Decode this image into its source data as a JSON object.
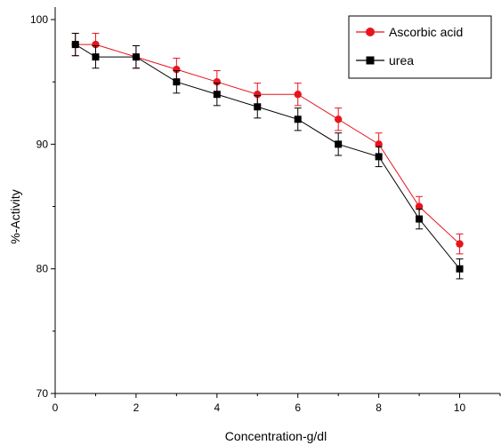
{
  "chart_data": {
    "type": "line",
    "xlabel": "Concentration-g/dl",
    "ylabel": "%-Activity",
    "xlim": [
      0,
      11
    ],
    "ylim": [
      70,
      101
    ],
    "x_ticks": [
      "0",
      "2",
      "4",
      "6",
      "8",
      "10"
    ],
    "y_ticks": [
      "70",
      "80",
      "90",
      "100"
    ],
    "grid": false,
    "legend_position": "top-right",
    "series": [
      {
        "name": "Ascorbic acid",
        "color": "#e8141c",
        "marker": "circle",
        "x": [
          0.5,
          1,
          2,
          3,
          4,
          5,
          6,
          7,
          8,
          9,
          10
        ],
        "y": [
          98,
          98,
          97,
          96,
          95,
          94,
          94,
          92,
          90,
          85,
          82
        ],
        "error": [
          0.9,
          0.9,
          0.9,
          0.9,
          0.9,
          0.9,
          0.9,
          0.9,
          0.9,
          0.8,
          0.8
        ]
      },
      {
        "name": "urea",
        "color": "#000000",
        "marker": "square",
        "x": [
          0.5,
          1,
          2,
          3,
          4,
          5,
          6,
          7,
          8,
          9,
          10
        ],
        "y": [
          98,
          97,
          97,
          95,
          94,
          93,
          92,
          90,
          89,
          84,
          80
        ],
        "error": [
          0.9,
          0.9,
          0.9,
          0.9,
          0.9,
          0.9,
          0.9,
          0.9,
          0.8,
          0.8,
          0.8
        ]
      }
    ]
  }
}
